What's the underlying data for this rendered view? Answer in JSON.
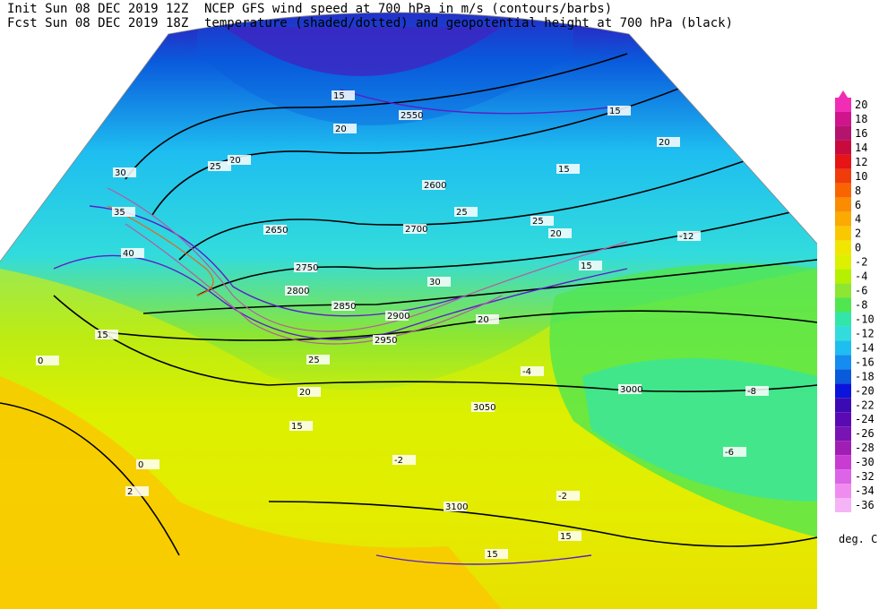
{
  "header": {
    "init": "Init  Sun 08 DEC 2019 12Z",
    "fcst": "Fcst Sun 08 DEC 2019 18Z",
    "title": "NCEP GFS wind speed at 700 hPa in m/s (contours/barbs)",
    "subtitle": "temperature (shaded/dotted) and geopotential height at 700 hPa (black)"
  },
  "colorbar": {
    "labels": [
      20,
      18,
      16,
      14,
      12,
      10,
      8,
      6,
      4,
      2,
      0,
      -2,
      -4,
      -6,
      -8,
      -10,
      -12,
      -14,
      -16,
      -18,
      -20,
      -22,
      -24,
      -26,
      -28,
      -30,
      -32,
      -34,
      -36
    ],
    "colors": [
      "#f02db4",
      "#d0148c",
      "#b4146e",
      "#c80a3c",
      "#e61414",
      "#f03c0a",
      "#fa6400",
      "#fa8c00",
      "#faaa00",
      "#fac800",
      "#f0e600",
      "#dcf000",
      "#b4f000",
      "#8ce632",
      "#50e650",
      "#32e6aa",
      "#32dcdc",
      "#1ebef0",
      "#148cf0",
      "#0a5adc",
      "#0a14dc",
      "#3c0ab4",
      "#5a0ab4",
      "#7814b4",
      "#a01eb4",
      "#c83cd2",
      "#dc64e6",
      "#f08cf0",
      "#f5b4f5"
    ],
    "unit": "deg. C"
  },
  "map": {
    "labels": [
      "2750",
      "2800",
      "2850",
      "2900",
      "2950",
      "3000",
      "3050",
      "3100",
      "2700",
      "2600",
      "2650",
      "2550",
      "15",
      "15",
      "15",
      "15",
      "15",
      "15",
      "15",
      "15",
      "20",
      "20",
      "20",
      "20",
      "20",
      "20",
      "25",
      "25",
      "25",
      "25",
      "30",
      "30",
      "35",
      "40",
      "-2",
      "-2",
      "0",
      "0",
      "-8",
      "-6",
      "-12",
      "-4",
      "2"
    ]
  }
}
